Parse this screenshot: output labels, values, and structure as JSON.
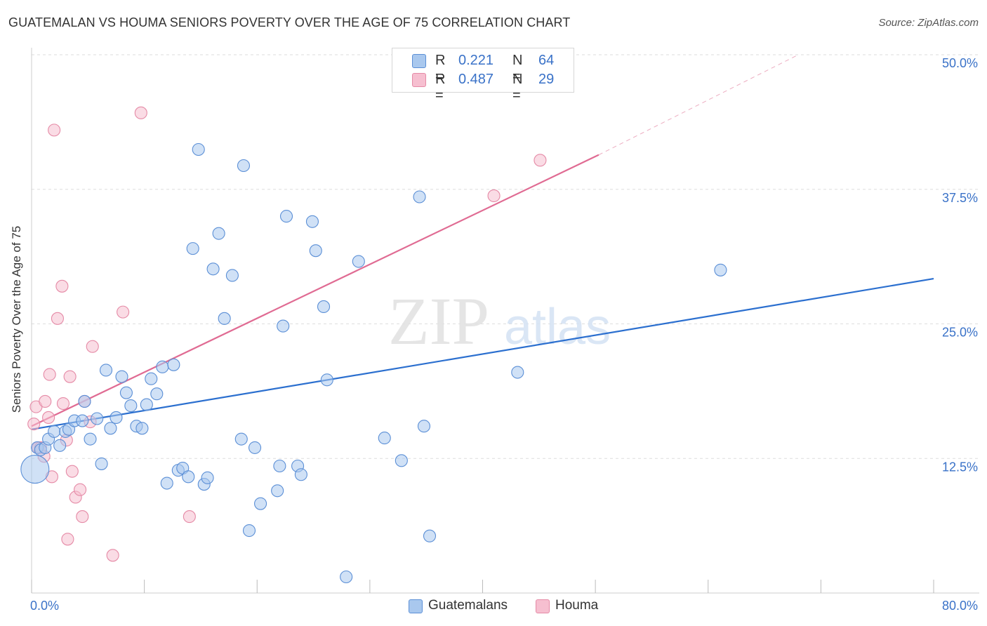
{
  "header": {
    "title": "GUATEMALAN VS HOUMA SENIORS POVERTY OVER THE AGE OF 75 CORRELATION CHART",
    "source": "Source: ZipAtlas.com"
  },
  "watermark": {
    "zip": "ZIP",
    "atlas": "atlas"
  },
  "legend": {
    "rows": [
      {
        "r_label": "R =",
        "r_value": "0.221",
        "n_label": "N =",
        "n_value": "64"
      },
      {
        "r_label": "R =",
        "r_value": "0.487",
        "n_label": "N =",
        "n_value": "29"
      }
    ]
  },
  "bottom_legend": {
    "guatemalans": "Guatemalans",
    "houma": "Houma"
  },
  "colors": {
    "blue_fill": "#a9c8ee",
    "blue_stroke": "#5b8fd6",
    "blue_line": "#2b6fcf",
    "pink_fill": "#f6bfd0",
    "pink_stroke": "#e58aa6",
    "pink_line": "#e06b93",
    "tick_text": "#3a72c8",
    "grid": "#dddddd"
  },
  "chart_data": {
    "type": "scatter",
    "title": "GUATEMALAN VS HOUMA SENIORS POVERTY OVER THE AGE OF 75 CORRELATION CHART",
    "xlabel": "",
    "ylabel": "Seniors Poverty Over the Age of 75",
    "xlim": [
      0,
      80
    ],
    "ylim": [
      0,
      50
    ],
    "x_tick_labels": [
      "0.0%",
      "80.0%"
    ],
    "y_ticks": [
      12.5,
      25.0,
      37.5,
      50.0
    ],
    "y_tick_labels": [
      "12.5%",
      "25.0%",
      "37.5%",
      "50.0%"
    ],
    "grid": true,
    "series": [
      {
        "name": "Guatemalans",
        "r": 0.221,
        "n": 64,
        "trend": {
          "x": [
            0,
            80
          ],
          "y": [
            15.2,
            29.2
          ],
          "dashed_extension": false
        },
        "points": [
          {
            "x": 0.3,
            "y": 11.5,
            "big": true
          },
          {
            "x": 0.5,
            "y": 13.5
          },
          {
            "x": 0.8,
            "y": 13.3
          },
          {
            "x": 1.2,
            "y": 13.5
          },
          {
            "x": 1.5,
            "y": 14.3
          },
          {
            "x": 2.0,
            "y": 15.0
          },
          {
            "x": 2.5,
            "y": 13.7
          },
          {
            "x": 3.0,
            "y": 15.0
          },
          {
            "x": 3.3,
            "y": 15.2
          },
          {
            "x": 3.8,
            "y": 16.0
          },
          {
            "x": 4.5,
            "y": 16.0
          },
          {
            "x": 4.7,
            "y": 17.8
          },
          {
            "x": 5.2,
            "y": 14.3
          },
          {
            "x": 5.8,
            "y": 16.2
          },
          {
            "x": 6.2,
            "y": 12.0
          },
          {
            "x": 6.6,
            "y": 20.7
          },
          {
            "x": 7.0,
            "y": 15.3
          },
          {
            "x": 7.5,
            "y": 16.3
          },
          {
            "x": 8.0,
            "y": 20.1
          },
          {
            "x": 8.4,
            "y": 18.6
          },
          {
            "x": 8.8,
            "y": 17.4
          },
          {
            "x": 9.3,
            "y": 15.5
          },
          {
            "x": 9.8,
            "y": 15.3
          },
          {
            "x": 10.2,
            "y": 17.5
          },
          {
            "x": 10.6,
            "y": 19.9
          },
          {
            "x": 11.1,
            "y": 18.5
          },
          {
            "x": 11.6,
            "y": 21.0
          },
          {
            "x": 12.0,
            "y": 10.2
          },
          {
            "x": 12.6,
            "y": 21.2
          },
          {
            "x": 13.0,
            "y": 11.4
          },
          {
            "x": 13.4,
            "y": 11.6
          },
          {
            "x": 13.9,
            "y": 10.8
          },
          {
            "x": 14.3,
            "y": 32.0
          },
          {
            "x": 14.8,
            "y": 41.2
          },
          {
            "x": 15.3,
            "y": 10.1
          },
          {
            "x": 15.6,
            "y": 10.7
          },
          {
            "x": 16.1,
            "y": 30.1
          },
          {
            "x": 16.6,
            "y": 33.4
          },
          {
            "x": 17.1,
            "y": 25.5
          },
          {
            "x": 17.8,
            "y": 29.5
          },
          {
            "x": 18.6,
            "y": 14.3
          },
          {
            "x": 18.8,
            "y": 39.7
          },
          {
            "x": 19.3,
            "y": 5.8
          },
          {
            "x": 19.8,
            "y": 13.5
          },
          {
            "x": 20.3,
            "y": 8.3
          },
          {
            "x": 21.8,
            "y": 9.5
          },
          {
            "x": 22.0,
            "y": 11.8
          },
          {
            "x": 22.3,
            "y": 24.8
          },
          {
            "x": 22.6,
            "y": 35.0
          },
          {
            "x": 23.6,
            "y": 11.8
          },
          {
            "x": 23.9,
            "y": 11.0
          },
          {
            "x": 24.9,
            "y": 34.5
          },
          {
            "x": 25.2,
            "y": 31.8
          },
          {
            "x": 25.9,
            "y": 26.6
          },
          {
            "x": 26.2,
            "y": 19.8
          },
          {
            "x": 27.9,
            "y": 1.5
          },
          {
            "x": 29.0,
            "y": 30.8
          },
          {
            "x": 31.3,
            "y": 14.4
          },
          {
            "x": 32.8,
            "y": 12.3
          },
          {
            "x": 34.4,
            "y": 36.8
          },
          {
            "x": 34.8,
            "y": 15.5
          },
          {
            "x": 35.3,
            "y": 5.3
          },
          {
            "x": 43.1,
            "y": 20.5
          },
          {
            "x": 61.1,
            "y": 30.0
          }
        ]
      },
      {
        "name": "Houma",
        "r": 0.487,
        "n": 29,
        "trend": {
          "x": [
            0,
            50.3
          ],
          "y": [
            15.5,
            40.7
          ],
          "dashed_to": {
            "x": 68,
            "y": 50
          }
        },
        "points": [
          {
            "x": 0.2,
            "y": 15.7
          },
          {
            "x": 0.4,
            "y": 17.3
          },
          {
            "x": 0.6,
            "y": 13.5
          },
          {
            "x": 0.8,
            "y": 13.5
          },
          {
            "x": 1.1,
            "y": 12.7
          },
          {
            "x": 1.2,
            "y": 17.8
          },
          {
            "x": 1.5,
            "y": 16.3
          },
          {
            "x": 1.6,
            "y": 20.3
          },
          {
            "x": 1.8,
            "y": 10.8
          },
          {
            "x": 2.0,
            "y": 43.0
          },
          {
            "x": 2.3,
            "y": 25.5
          },
          {
            "x": 2.7,
            "y": 28.5
          },
          {
            "x": 2.8,
            "y": 17.6
          },
          {
            "x": 3.1,
            "y": 14.2
          },
          {
            "x": 3.2,
            "y": 5.0
          },
          {
            "x": 3.4,
            "y": 20.1
          },
          {
            "x": 3.6,
            "y": 11.3
          },
          {
            "x": 3.9,
            "y": 8.9
          },
          {
            "x": 4.3,
            "y": 9.6
          },
          {
            "x": 4.5,
            "y": 7.1
          },
          {
            "x": 4.7,
            "y": 17.8
          },
          {
            "x": 5.2,
            "y": 15.9
          },
          {
            "x": 5.4,
            "y": 22.9
          },
          {
            "x": 7.2,
            "y": 3.5
          },
          {
            "x": 8.1,
            "y": 26.1
          },
          {
            "x": 9.7,
            "y": 44.6
          },
          {
            "x": 14.0,
            "y": 7.1
          },
          {
            "x": 41.0,
            "y": 36.9
          },
          {
            "x": 45.1,
            "y": 40.2
          }
        ]
      }
    ]
  }
}
